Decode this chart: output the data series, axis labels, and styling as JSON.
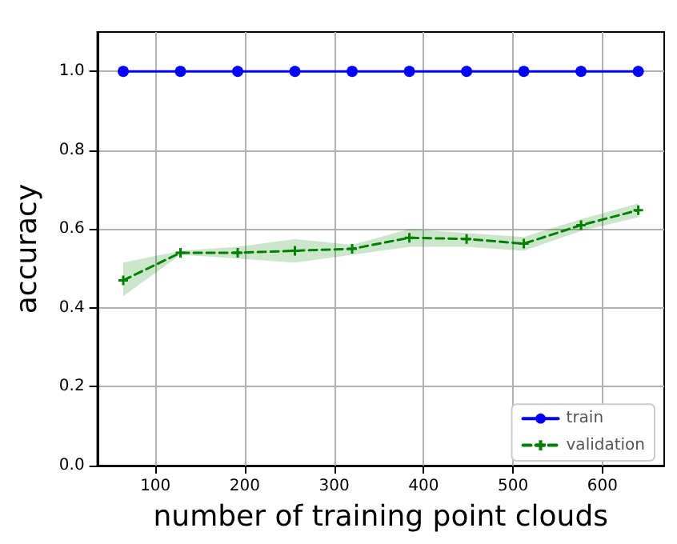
{
  "chart_data": {
    "type": "line",
    "xlabel": "number of training point clouds",
    "ylabel": "accuracy",
    "x": [
      64,
      128,
      192,
      256,
      320,
      384,
      448,
      512,
      576,
      640
    ],
    "series": [
      {
        "name": "train",
        "color": "#0000ff",
        "marker": "circle",
        "line_style": "solid",
        "values": [
          1,
          1,
          1,
          1,
          1,
          1,
          1,
          1,
          1,
          1
        ]
      },
      {
        "name": "validation",
        "color": "#008000",
        "marker": "cross",
        "line_style": "dashed",
        "values": [
          0.47,
          0.54,
          0.54,
          0.545,
          0.55,
          0.578,
          0.575,
          0.563,
          0.61,
          0.648
        ],
        "lower": [
          0.43,
          0.535,
          0.525,
          0.515,
          0.535,
          0.555,
          0.555,
          0.545,
          0.595,
          0.63
        ],
        "upper": [
          0.515,
          0.545,
          0.555,
          0.575,
          0.56,
          0.6,
          0.59,
          0.58,
          0.625,
          0.665
        ]
      }
    ],
    "xlim": [
      35,
      669
    ],
    "xticks": [
      100,
      200,
      300,
      400,
      500,
      600
    ],
    "ylim": [
      0,
      1.1
    ],
    "yticks": [
      {
        "value": 0,
        "label": "0.0"
      },
      {
        "value": 0.2,
        "label": "0.2"
      },
      {
        "value": 0.4,
        "label": "0.4"
      },
      {
        "value": 0.6,
        "label": "0.6"
      },
      {
        "value": 0.8,
        "label": "0.8"
      },
      {
        "value": 1,
        "label": "1.0"
      }
    ],
    "grid": true,
    "legend": "bottom right"
  }
}
